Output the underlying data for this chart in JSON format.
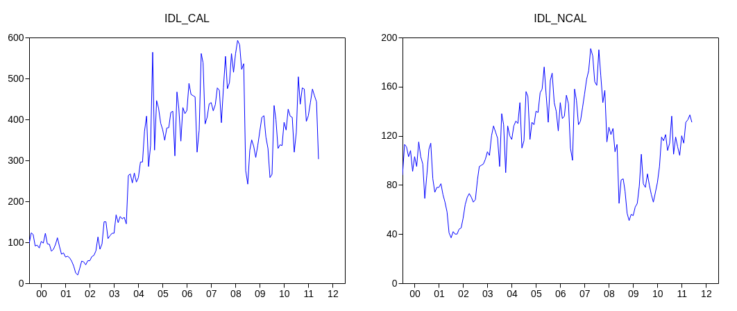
{
  "chart_data": [
    {
      "type": "line",
      "title": "IDL_CAL",
      "color": "#0000ff",
      "xlim": [
        "2000-01",
        "2013-01"
      ],
      "ylim": [
        0,
        600
      ],
      "yticks": [
        0,
        100,
        200,
        300,
        400,
        500,
        600
      ],
      "xticks": [
        {
          "value": "2000-07",
          "label": "00"
        },
        {
          "value": "2001-07",
          "label": "01"
        },
        {
          "value": "2002-07",
          "label": "02"
        },
        {
          "value": "2003-07",
          "label": "03"
        },
        {
          "value": "2004-07",
          "label": "04"
        },
        {
          "value": "2005-07",
          "label": "05"
        },
        {
          "value": "2006-07",
          "label": "06"
        },
        {
          "value": "2007-07",
          "label": "07"
        },
        {
          "value": "2008-07",
          "label": "08"
        },
        {
          "value": "2009-07",
          "label": "09"
        },
        {
          "value": "2010-07",
          "label": "10"
        },
        {
          "value": "2011-07",
          "label": "11"
        },
        {
          "value": "2012-07",
          "label": "12"
        }
      ],
      "x": [
        "2000-01",
        "2000-02",
        "2000-03",
        "2000-04",
        "2000-05",
        "2000-06",
        "2000-07",
        "2000-08",
        "2000-09",
        "2000-10",
        "2000-11",
        "2000-12",
        "2001-01",
        "2001-02",
        "2001-03",
        "2001-04",
        "2001-05",
        "2001-06",
        "2001-07",
        "2001-08",
        "2001-09",
        "2001-10",
        "2001-11",
        "2001-12",
        "2002-01",
        "2002-02",
        "2002-03",
        "2002-04",
        "2002-05",
        "2002-06",
        "2002-07",
        "2002-08",
        "2002-09",
        "2002-10",
        "2002-11",
        "2002-12",
        "2003-01",
        "2003-02",
        "2003-03",
        "2003-04",
        "2003-05",
        "2003-06",
        "2003-07",
        "2003-08",
        "2003-09",
        "2003-10",
        "2003-11",
        "2003-12",
        "2004-01",
        "2004-02",
        "2004-03",
        "2004-04",
        "2004-05",
        "2004-06",
        "2004-07",
        "2004-08",
        "2004-09",
        "2004-10",
        "2004-11",
        "2004-12",
        "2005-01",
        "2005-02",
        "2005-03",
        "2005-04",
        "2005-05",
        "2005-06",
        "2005-07",
        "2005-08",
        "2005-09",
        "2005-10",
        "2005-11",
        "2005-12",
        "2006-01",
        "2006-02",
        "2006-03",
        "2006-04",
        "2006-05",
        "2006-06",
        "2006-07",
        "2006-08",
        "2006-09",
        "2006-10",
        "2006-11",
        "2006-12",
        "2007-01",
        "2007-02",
        "2007-03",
        "2007-04",
        "2007-05",
        "2007-06",
        "2007-07",
        "2007-08",
        "2007-09",
        "2007-10",
        "2007-11",
        "2007-12",
        "2008-01",
        "2008-02",
        "2008-03",
        "2008-04",
        "2008-05",
        "2008-06",
        "2008-07",
        "2008-08",
        "2008-09",
        "2008-10",
        "2008-11",
        "2008-12",
        "2009-01",
        "2009-02",
        "2009-03",
        "2009-04",
        "2009-05",
        "2009-06",
        "2009-07",
        "2009-08",
        "2009-09",
        "2009-10",
        "2009-11",
        "2009-12",
        "2010-01",
        "2010-02",
        "2010-03",
        "2010-04",
        "2010-05",
        "2010-06",
        "2010-07",
        "2010-08",
        "2010-09",
        "2010-10",
        "2010-11",
        "2010-12",
        "2011-01",
        "2011-02",
        "2011-03",
        "2011-04",
        "2011-05",
        "2011-06",
        "2011-07",
        "2011-08",
        "2011-09",
        "2011-10",
        "2011-11",
        "2011-12"
      ],
      "values": [
        96,
        123,
        119,
        91,
        93,
        86,
        102,
        98,
        122,
        96,
        95,
        78,
        83,
        95,
        111,
        90,
        71,
        74,
        64,
        66,
        62,
        54,
        42,
        25,
        20,
        37,
        54,
        52,
        45,
        55,
        55,
        65,
        68,
        79,
        113,
        83,
        96,
        150,
        150,
        109,
        116,
        122,
        122,
        167,
        148,
        163,
        157,
        161,
        145,
        263,
        267,
        245,
        269,
        247,
        258,
        296,
        296,
        371,
        408,
        285,
        337,
        564,
        325,
        446,
        427,
        391,
        375,
        349,
        379,
        380,
        417,
        420,
        311,
        467,
        427,
        347,
        429,
        414,
        422,
        488,
        461,
        458,
        455,
        320,
        374,
        561,
        538,
        389,
        405,
        438,
        441,
        421,
        436,
        477,
        471,
        392,
        477,
        554,
        475,
        490,
        561,
        515,
        560,
        593,
        582,
        522,
        536,
        275,
        242,
        325,
        350,
        334,
        307,
        337,
        371,
        405,
        409,
        357,
        329,
        258,
        266,
        434,
        399,
        329,
        338,
        336,
        393,
        374,
        425,
        408,
        405,
        320,
        368,
        504,
        437,
        477,
        474,
        395,
        409,
        441,
        474,
        458,
        443,
        303
      ]
    },
    {
      "type": "line",
      "title": "IDL_NCAL",
      "color": "#0000ff",
      "xlim": [
        "2000-01",
        "2013-01"
      ],
      "ylim": [
        0,
        200
      ],
      "yticks": [
        0,
        40,
        80,
        120,
        160,
        200
      ],
      "xticks": [
        {
          "value": "2000-07",
          "label": "00"
        },
        {
          "value": "2001-07",
          "label": "01"
        },
        {
          "value": "2002-07",
          "label": "02"
        },
        {
          "value": "2003-07",
          "label": "03"
        },
        {
          "value": "2004-07",
          "label": "04"
        },
        {
          "value": "2005-07",
          "label": "05"
        },
        {
          "value": "2006-07",
          "label": "06"
        },
        {
          "value": "2007-07",
          "label": "07"
        },
        {
          "value": "2008-07",
          "label": "08"
        },
        {
          "value": "2009-07",
          "label": "09"
        },
        {
          "value": "2010-07",
          "label": "10"
        },
        {
          "value": "2011-07",
          "label": "11"
        },
        {
          "value": "2012-07",
          "label": "12"
        }
      ],
      "x": [
        "2000-01",
        "2000-02",
        "2000-03",
        "2000-04",
        "2000-05",
        "2000-06",
        "2000-07",
        "2000-08",
        "2000-09",
        "2000-10",
        "2000-11",
        "2000-12",
        "2001-01",
        "2001-02",
        "2001-03",
        "2001-04",
        "2001-05",
        "2001-06",
        "2001-07",
        "2001-08",
        "2001-09",
        "2001-10",
        "2001-11",
        "2001-12",
        "2002-01",
        "2002-02",
        "2002-03",
        "2002-04",
        "2002-05",
        "2002-06",
        "2002-07",
        "2002-08",
        "2002-09",
        "2002-10",
        "2002-11",
        "2002-12",
        "2003-01",
        "2003-02",
        "2003-03",
        "2003-04",
        "2003-05",
        "2003-06",
        "2003-07",
        "2003-08",
        "2003-09",
        "2003-10",
        "2003-11",
        "2003-12",
        "2004-01",
        "2004-02",
        "2004-03",
        "2004-04",
        "2004-05",
        "2004-06",
        "2004-07",
        "2004-08",
        "2004-09",
        "2004-10",
        "2004-11",
        "2004-12",
        "2005-01",
        "2005-02",
        "2005-03",
        "2005-04",
        "2005-05",
        "2005-06",
        "2005-07",
        "2005-08",
        "2005-09",
        "2005-10",
        "2005-11",
        "2005-12",
        "2006-01",
        "2006-02",
        "2006-03",
        "2006-04",
        "2006-05",
        "2006-06",
        "2006-07",
        "2006-08",
        "2006-09",
        "2006-10",
        "2006-11",
        "2006-12",
        "2007-01",
        "2007-02",
        "2007-03",
        "2007-04",
        "2007-05",
        "2007-06",
        "2007-07",
        "2007-08",
        "2007-09",
        "2007-10",
        "2007-11",
        "2007-12",
        "2008-01",
        "2008-02",
        "2008-03",
        "2008-04",
        "2008-05",
        "2008-06",
        "2008-07",
        "2008-08",
        "2008-09",
        "2008-10",
        "2008-11",
        "2008-12",
        "2009-01",
        "2009-02",
        "2009-03",
        "2009-04",
        "2009-05",
        "2009-06",
        "2009-07",
        "2009-08",
        "2009-09",
        "2009-10",
        "2009-11",
        "2009-12",
        "2010-01",
        "2010-02",
        "2010-03",
        "2010-04",
        "2010-05",
        "2010-06",
        "2010-07",
        "2010-08",
        "2010-09",
        "2010-10",
        "2010-11",
        "2010-12",
        "2011-01",
        "2011-02",
        "2011-03",
        "2011-04",
        "2011-05",
        "2011-06",
        "2011-07",
        "2011-08",
        "2011-09",
        "2011-10",
        "2011-11",
        "2011-12"
      ],
      "values": [
        88,
        113,
        111,
        103,
        108,
        91,
        103,
        95,
        115,
        103,
        97,
        69,
        88,
        109,
        114,
        85,
        74,
        78,
        78,
        81,
        72,
        66,
        58,
        41,
        37,
        42,
        40,
        40,
        44,
        45,
        53,
        64,
        70,
        73,
        70,
        66,
        68,
        84,
        95,
        96,
        97,
        101,
        107,
        104,
        120,
        128,
        123,
        118,
        95,
        138,
        129,
        90,
        128,
        120,
        117,
        128,
        132,
        130,
        147,
        110,
        116,
        156,
        152,
        117,
        131,
        129,
        140,
        139,
        155,
        158,
        176,
        153,
        131,
        165,
        171,
        147,
        140,
        124,
        147,
        134,
        136,
        153,
        146,
        110,
        100,
        158,
        149,
        129,
        132,
        143,
        154,
        166,
        173,
        191,
        185,
        164,
        161,
        190,
        169,
        147,
        157,
        115,
        127,
        121,
        126,
        107,
        113,
        65,
        84,
        85,
        75,
        57,
        51,
        56,
        55,
        62,
        65,
        79,
        105,
        81,
        78,
        89,
        80,
        72,
        66,
        74,
        82,
        95,
        119,
        116,
        121,
        108,
        114,
        136,
        105,
        119,
        111,
        104,
        120,
        114,
        131,
        133,
        137,
        131
      ]
    }
  ]
}
